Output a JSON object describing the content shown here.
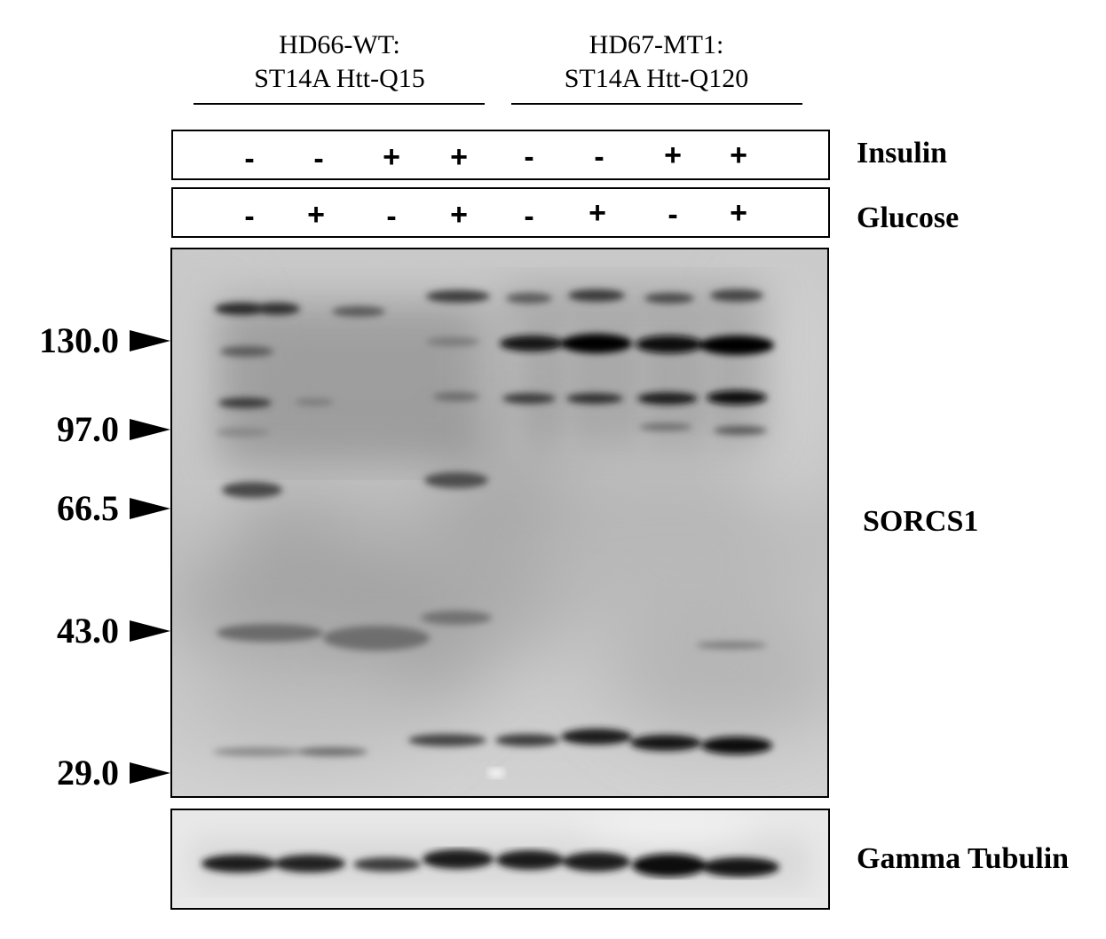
{
  "groups": [
    {
      "line1": "HD66-WT:",
      "line2": "ST14A Htt-Q15"
    },
    {
      "line1": "HD67-MT1:",
      "line2": "ST14A Htt-Q120"
    }
  ],
  "conditions": {
    "insulin": {
      "label": "Insulin",
      "signs": [
        "-",
        "-",
        "+",
        "+",
        "-",
        "-",
        "+",
        "+"
      ]
    },
    "glucose": {
      "label": "Glucose",
      "signs": [
        "-",
        "+",
        "-",
        "+",
        "-",
        "+",
        "-",
        "+"
      ]
    }
  },
  "markers": [
    "130.0",
    "97.0",
    "66.5",
    "43.0",
    "29.0"
  ],
  "blots": {
    "main": {
      "label": "SORCS1"
    },
    "loading": {
      "label": "Gamma Tubulin"
    }
  }
}
